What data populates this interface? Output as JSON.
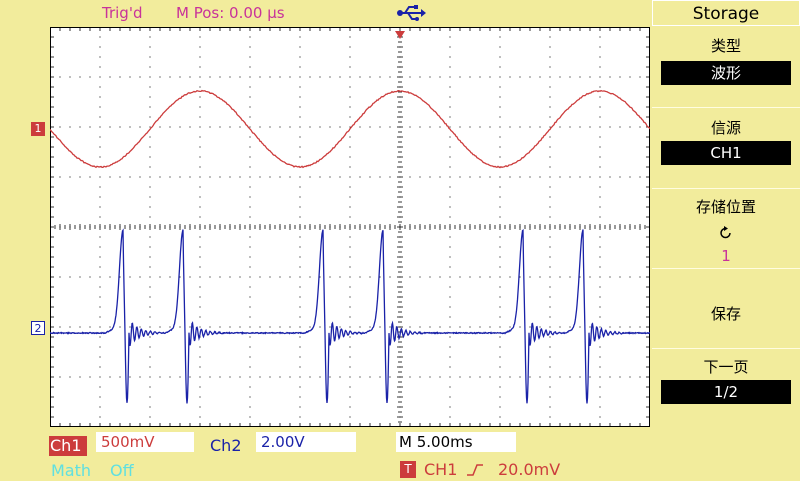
{
  "header": {
    "trig_status": "Trig'd",
    "m_pos": "M Pos: 0.00 µs"
  },
  "channels": {
    "ch1_marker": "1",
    "ch2_marker": "2"
  },
  "menu": {
    "title": "Storage",
    "type_label": "类型",
    "type_value": "波形",
    "source_label": "信源",
    "source_value": "CH1",
    "location_label": "存储位置",
    "location_value": "1",
    "save_label": "保存",
    "next_page_label": "下一页",
    "page_value": "1/2"
  },
  "status_bar": {
    "ch1_label": "Ch1",
    "ch1_scale": "500mV",
    "ch2_label": "Ch2",
    "ch2_scale": "2.00V",
    "timebase": "M 5.00ms",
    "math_label": "Math",
    "math_state": "Off",
    "trigger_badge": "T",
    "trigger_source": "CH1",
    "trigger_level": "20.0mV"
  },
  "colors": {
    "background": "#f2ec9c",
    "ch1": "#cc3c3c",
    "ch2": "#1a22a8",
    "accent": "#c8339a",
    "math": "#60e0e0"
  },
  "icons": {
    "usb": "usb-icon",
    "trigger_marker": "trigger-position-icon",
    "rising_edge": "rising-edge-icon",
    "refresh": "cycle-icon"
  }
}
